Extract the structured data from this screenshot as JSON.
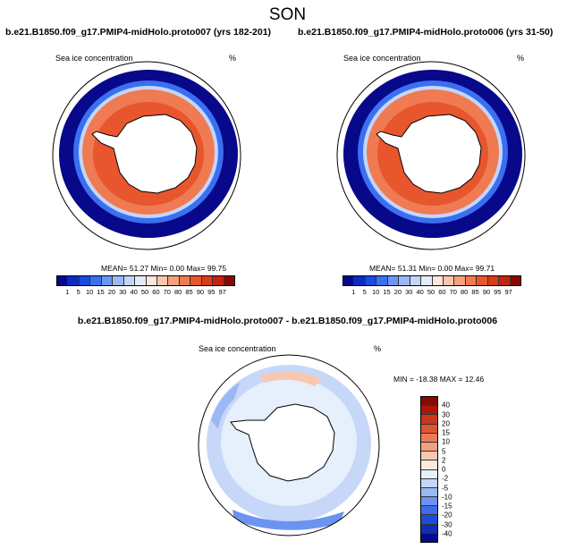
{
  "title": "SON",
  "colors": {
    "land": "#ffffff",
    "coast": "#000000",
    "conc_scale": [
      "#08088a",
      "#0a2bc4",
      "#1a4be0",
      "#3a6ff0",
      "#6c96f5",
      "#9ab8f7",
      "#c4d6f8",
      "#e4ecfa",
      "#fce6dc",
      "#f9c6ae",
      "#f6a07d",
      "#f07a52",
      "#e8562e",
      "#dc3a1c",
      "#c22412",
      "#8a0a02"
    ],
    "diff_scale": [
      "#08088a",
      "#0f2eb0",
      "#1f4cd6",
      "#3d6de8",
      "#6b93f0",
      "#9bb8f5",
      "#c6d7f8",
      "#e6effc",
      "#fde8df",
      "#f9c7b0",
      "#f4a07e",
      "#ec7a55",
      "#e05531",
      "#cc3619",
      "#a8180a",
      "#8a0a02"
    ]
  },
  "panels": [
    {
      "id": "left",
      "title": "b.e21.B1850.f09_g17.PMIP4-midHolo.proto007 (yrs 182-201)",
      "variable": "Sea ice concentration",
      "units": "%",
      "stats": "MEAN=  51.27  Min=    0.00  Max=  99.75"
    },
    {
      "id": "right",
      "title": "b.e21.B1850.f09_g17.PMIP4-midHolo.proto006 (yrs 31-50)",
      "variable": "Sea ice concentration",
      "units": "%",
      "stats": "MEAN=  51.31  Min=    0.00  Max=  99.71"
    }
  ],
  "diff_panel": {
    "title": "b.e21.B1850.f09_g17.PMIP4-midHolo.proto007 - b.e21.B1850.f09_g17.PMIP4-midHolo.proto006",
    "variable": "Sea ice concentration",
    "units": "%",
    "stats": "MIN = -18.38 MAX =  12.46"
  },
  "chart_data": [
    {
      "type": "heatmap",
      "projection": "south polar stereographic",
      "title": "b.e21.B1850.f09_g17.PMIP4-midHolo.proto007 (yrs 182-201)",
      "variable": "Sea ice concentration",
      "units": "%",
      "mean": 51.27,
      "min": 0.0,
      "max": 99.75,
      "colorbar_levels": [
        "1",
        "5",
        "10",
        "15",
        "20",
        "30",
        "40",
        "50",
        "60",
        "70",
        "80",
        "85",
        "90",
        "95",
        "97"
      ]
    },
    {
      "type": "heatmap",
      "projection": "south polar stereographic",
      "title": "b.e21.B1850.f09_g17.PMIP4-midHolo.proto006 (yrs 31-50)",
      "variable": "Sea ice concentration",
      "units": "%",
      "mean": 51.31,
      "min": 0.0,
      "max": 99.71,
      "colorbar_levels": [
        "1",
        "5",
        "10",
        "15",
        "20",
        "30",
        "40",
        "50",
        "60",
        "70",
        "80",
        "85",
        "90",
        "95",
        "97"
      ]
    },
    {
      "type": "heatmap",
      "projection": "south polar stereographic",
      "title": "b.e21.B1850.f09_g17.PMIP4-midHolo.proto007 - b.e21.B1850.f09_g17.PMIP4-midHolo.proto006",
      "variable": "Sea ice concentration",
      "units": "%",
      "min": -18.38,
      "max": 12.46,
      "colorbar_levels": [
        "40",
        "30",
        "20",
        "15",
        "10",
        "5",
        "2",
        "0",
        "-2",
        "-5",
        "-10",
        "-15",
        "-20",
        "-30",
        "-40"
      ]
    }
  ]
}
